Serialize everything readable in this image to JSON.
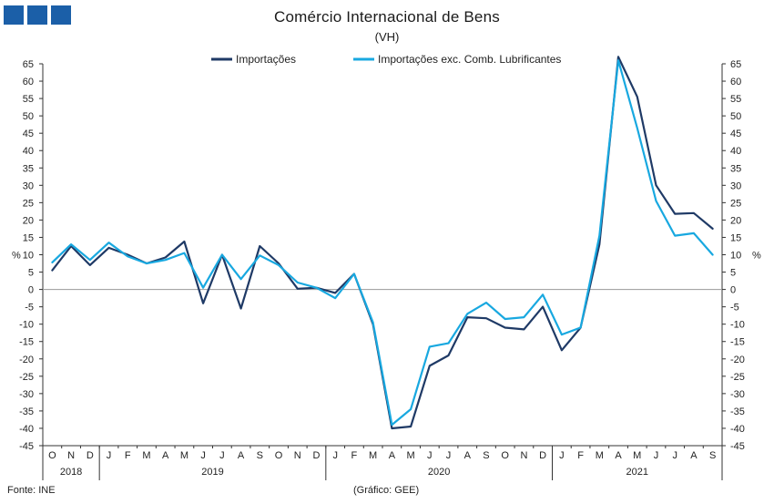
{
  "header": {
    "title": "Comércio Internacional de Bens",
    "subtitle": "(VH)"
  },
  "colors": {
    "logo": "#1b5fa8",
    "importacoes": "#1f3a66",
    "exc_comb": "#18a8e0",
    "axis": "#333333",
    "zero_line": "#9a9a9a"
  },
  "footer": {
    "source": "Fonte: INE",
    "graphic": "(Gráfico: GEE)"
  },
  "chart_data": {
    "type": "line",
    "title": "Comércio Internacional de Bens",
    "subtitle": "(VH)",
    "ylabel_left": "%",
    "ylabel_right": "%",
    "ylim": [
      -45,
      65
    ],
    "y_ticks": [
      65,
      60,
      55,
      50,
      45,
      40,
      35,
      30,
      25,
      20,
      15,
      10,
      5,
      0,
      -5,
      -10,
      -15,
      -20,
      -25,
      -30,
      -35,
      -40,
      -45
    ],
    "grid": false,
    "legend_position": "top-center",
    "month_labels": [
      "O",
      "N",
      "D",
      "J",
      "F",
      "M",
      "A",
      "M",
      "J",
      "J",
      "A",
      "S",
      "O",
      "N",
      "D",
      "J",
      "F",
      "M",
      "A",
      "M",
      "J",
      "J",
      "A",
      "S",
      "O",
      "N",
      "D",
      "J",
      "F",
      "M",
      "A",
      "M",
      "J",
      "J",
      "A",
      "S"
    ],
    "year_groups": [
      {
        "label": "2018",
        "count": 3
      },
      {
        "label": "2019",
        "count": 12
      },
      {
        "label": "2020",
        "count": 12
      },
      {
        "label": "2021",
        "count": 9
      }
    ],
    "series": [
      {
        "name": "Importações",
        "color": "#1f3a66",
        "values": [
          5.5,
          12.5,
          7,
          12,
          10,
          7.5,
          9.2,
          13.8,
          -4,
          10,
          -5.5,
          12.5,
          7.5,
          0.2,
          0.5,
          -1,
          4.5,
          -10,
          -40,
          -39.5,
          -22,
          -19,
          -8,
          -8.3,
          -11,
          -11.5,
          -5,
          -17.5,
          -11,
          13,
          67,
          55.5,
          30,
          21.8,
          22,
          17.5
        ]
      },
      {
        "name": "Importações exc. Comb. Lubrificantes",
        "color": "#18a8e0",
        "values": [
          7.8,
          13,
          8.5,
          13.5,
          9.5,
          7.5,
          8.5,
          10.5,
          0.5,
          10,
          3,
          9.8,
          7,
          2,
          0.5,
          -2.5,
          4.5,
          -9.5,
          -39,
          -34.5,
          -16.5,
          -15.5,
          -7,
          -3.8,
          -8.5,
          -8,
          -1.5,
          -13,
          -11,
          15.5,
          66,
          46.5,
          25.5,
          15.5,
          16.2,
          10
        ]
      }
    ]
  }
}
